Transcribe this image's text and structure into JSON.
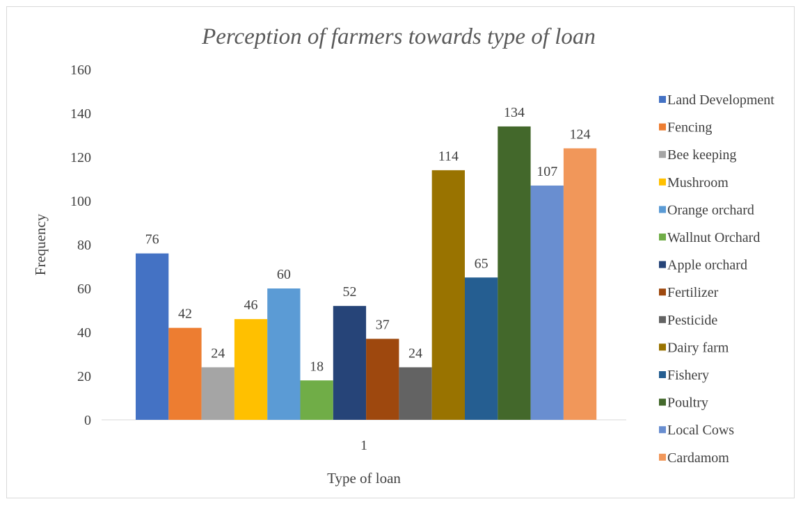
{
  "chart_data": {
    "type": "bar",
    "title": "Perception of farmers towards type of loan",
    "xlabel": "Type of loan",
    "ylabel": "Frequency",
    "categories": [
      "1"
    ],
    "ylim": [
      0,
      160
    ],
    "yticks": [
      0,
      20,
      40,
      60,
      80,
      100,
      120,
      140,
      160
    ],
    "grid": false,
    "legend_position": "right",
    "series": [
      {
        "name": "Land Development",
        "values": [
          76
        ],
        "color": "#4472c4"
      },
      {
        "name": "Fencing",
        "values": [
          42
        ],
        "color": "#ed7d31"
      },
      {
        "name": " Bee keeping",
        "values": [
          24
        ],
        "color": "#a5a5a5"
      },
      {
        "name": "Mushroom",
        "values": [
          46
        ],
        "color": "#ffc000"
      },
      {
        "name": "Orange orchard",
        "values": [
          60
        ],
        "color": "#5b9bd5"
      },
      {
        "name": "Wallnut Orchard",
        "values": [
          18
        ],
        "color": "#70ad47"
      },
      {
        "name": "Apple orchard",
        "values": [
          52
        ],
        "color": "#264478"
      },
      {
        "name": "Fertilizer",
        "values": [
          37
        ],
        "color": "#9e480e"
      },
      {
        "name": "Pesticide",
        "values": [
          24
        ],
        "color": "#636363"
      },
      {
        "name": "Dairy farm",
        "values": [
          114
        ],
        "color": "#997300"
      },
      {
        "name": "Fishery",
        "values": [
          65
        ],
        "color": "#255e91"
      },
      {
        "name": "Poultry",
        "values": [
          134
        ],
        "color": "#43682b"
      },
      {
        "name": "Local Cows",
        "values": [
          107
        ],
        "color": "#698ed0"
      },
      {
        "name": "Cardamom",
        "values": [
          124
        ],
        "color": "#f1975a"
      }
    ]
  }
}
